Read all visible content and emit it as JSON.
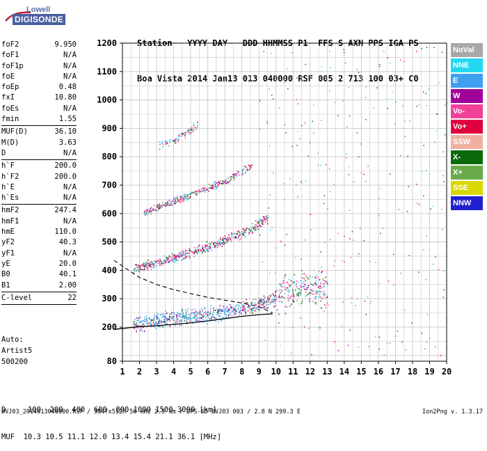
{
  "logo": {
    "line1": "Lowell",
    "line2": "DIGISONDE"
  },
  "header": {
    "row1": "Station   YYYY DAY   DDD HHMMSS P1  FFS S AXN PPS IGA PS",
    "row2": "Boa Vista 2014 Jan13 013 040000 RSF 005 2 713 100 03+ C0"
  },
  "params": [
    {
      "name": "foF2",
      "value": "9.950"
    },
    {
      "name": "foF1",
      "value": "N/A"
    },
    {
      "name": "foF1p",
      "value": "N/A"
    },
    {
      "name": "foE",
      "value": "N/A"
    },
    {
      "name": "foEp",
      "value": "0.48"
    },
    {
      "name": "fxI",
      "value": "10.80"
    },
    {
      "name": "foEs",
      "value": "N/A"
    },
    {
      "name": "fmin",
      "value": "1.55"
    },
    {
      "sep": true
    },
    {
      "name": "MUF(D)",
      "value": "36.10"
    },
    {
      "name": "M(D)",
      "value": "3.63"
    },
    {
      "name": "D",
      "value": "N/A"
    },
    {
      "sep": true
    },
    {
      "name": "h`F",
      "value": "200.0"
    },
    {
      "name": "h`F2",
      "value": "200.0"
    },
    {
      "name": "h`E",
      "value": "N/A"
    },
    {
      "name": "h`Es",
      "value": "N/A"
    },
    {
      "sep": true
    },
    {
      "name": "hmF2",
      "value": "247.4"
    },
    {
      "name": "hmF1",
      "value": "N/A"
    },
    {
      "name": "hmE",
      "value": "110.0"
    },
    {
      "name": "yF2",
      "value": "40.3"
    },
    {
      "name": "yF1",
      "value": "N/A"
    },
    {
      "name": "yE",
      "value": "20.0"
    },
    {
      "name": "B0",
      "value": "40.1"
    },
    {
      "name": "B1",
      "value": "2.00"
    },
    {
      "sep": true
    },
    {
      "name": "C-level",
      "value": "22"
    },
    {
      "sep": true
    }
  ],
  "auto": [
    "Auto:",
    "Artist5",
    "500200"
  ],
  "legend": [
    {
      "label": "NoVal",
      "color": "#a8a8a8"
    },
    {
      "label": "NNE",
      "color": "#22d8f0"
    },
    {
      "label": "E",
      "color": "#3fa0f0"
    },
    {
      "label": "W",
      "color": "#a0009a"
    },
    {
      "label": "Vo-",
      "color": "#f0409a"
    },
    {
      "label": "Vo+",
      "color": "#e00040"
    },
    {
      "label": "SSW",
      "color": "#f0b0a0"
    },
    {
      "label": "X-",
      "color": "#0a6a0a"
    },
    {
      "label": "X+",
      "color": "#6aaa4a"
    },
    {
      "label": "SSE",
      "color": "#d8d800"
    },
    {
      "label": "NNW",
      "color": "#2020d0"
    }
  ],
  "bottom": {
    "row1": "D     100  200  400  600  800 1000 1500 3000 [km]",
    "row2": "MUF  10.3 10.5 11.1 12.0 13.4 15.4 21.1 36.1 [MHz]"
  },
  "footer_left": "BVJ03_2014013040000.RSF / 384fx512h 50 kHz 2.5 km / DPS-4D BVJ03 003 / 2.8 N 299.3 E",
  "footer_right": "Ion2Png v. 1.3.17",
  "chart_data": {
    "type": "scatter",
    "title": "",
    "xlabel": "",
    "ylabel": "",
    "xlim": [
      1,
      20
    ],
    "ylim": [
      80,
      1200
    ],
    "x_ticks": [
      1,
      2,
      3,
      4,
      5,
      6,
      7,
      8,
      9,
      10,
      11,
      12,
      13,
      14,
      15,
      16,
      17,
      18,
      19,
      20
    ],
    "y_ticks": [
      80,
      200,
      300,
      400,
      500,
      600,
      700,
      800,
      900,
      1000,
      1100,
      1200
    ],
    "grid": true,
    "traces": [
      {
        "name": "O-trace 1st hop",
        "x": [
          1.6,
          2.5,
          3.5,
          4.5,
          5.5,
          6.5,
          7.5,
          8.5,
          9.5,
          10.0,
          10.5,
          11.0,
          11.5,
          12.0,
          12.5,
          13.0
        ],
        "y": [
          208,
          218,
          228,
          236,
          242,
          250,
          262,
          275,
          293,
          305,
          320,
          335,
          345,
          345,
          340,
          335
        ]
      },
      {
        "name": "2nd hop",
        "x": [
          1.6,
          2.5,
          3.5,
          4.5,
          5.5,
          6.5,
          7.5,
          8.5,
          9.5
        ],
        "y": [
          405,
          420,
          436,
          455,
          475,
          495,
          520,
          545,
          585
        ]
      },
      {
        "name": "3rd hop",
        "x": [
          2.2,
          3.0,
          4.0,
          5.0,
          6.0,
          7.0,
          8.0,
          8.6
        ],
        "y": [
          605,
          622,
          645,
          668,
          690,
          715,
          750,
          775
        ]
      },
      {
        "name": "high cluster",
        "x": [
          3.0,
          3.5,
          4.0,
          4.5,
          5.0,
          5.5
        ],
        "y": [
          840,
          850,
          860,
          875,
          895,
          920
        ]
      }
    ],
    "profile_curve": {
      "x": [
        0.5,
        2,
        3,
        4,
        5,
        6,
        7,
        8,
        9,
        9.8
      ],
      "y": [
        192,
        202,
        205,
        210,
        215,
        222,
        230,
        238,
        244,
        247
      ]
    },
    "sigma_curve": {
      "x": [
        0.5,
        1.5,
        2,
        3,
        4,
        5,
        6,
        7,
        8,
        9,
        9.8
      ],
      "y": [
        435,
        395,
        375,
        350,
        332,
        318,
        305,
        295,
        285,
        272,
        250
      ]
    }
  }
}
